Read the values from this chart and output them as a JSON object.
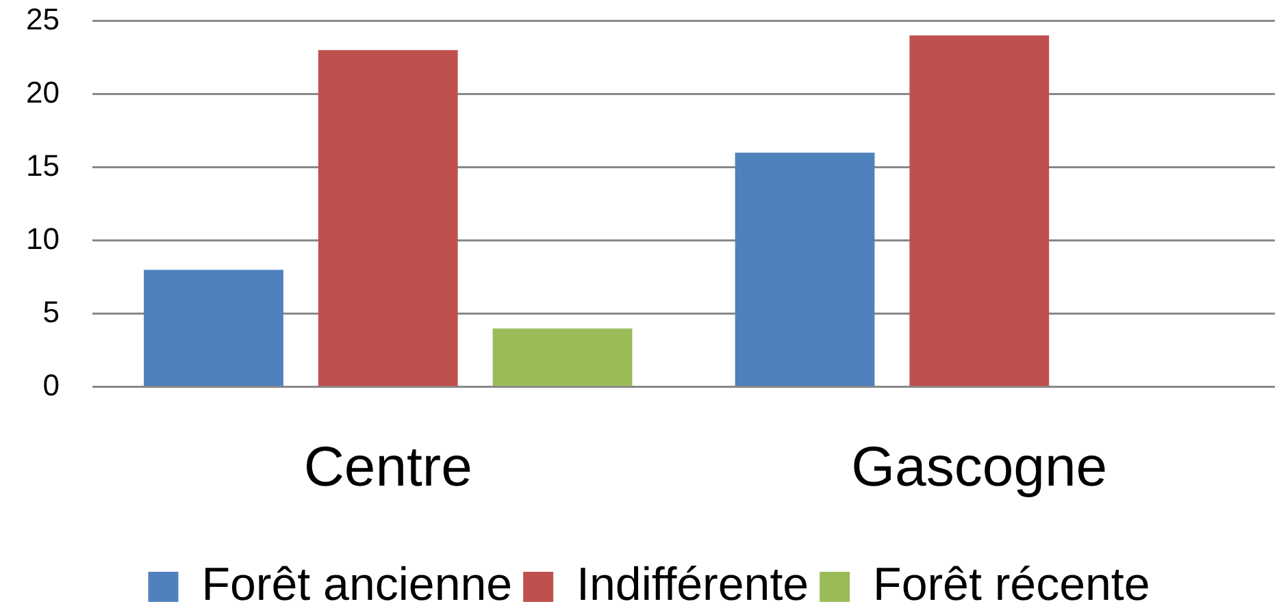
{
  "chart_data": {
    "type": "bar",
    "categories": [
      "Centre",
      "Gascogne"
    ],
    "series": [
      {
        "name": "Forêt ancienne",
        "color": "#4f81bd",
        "values": [
          8,
          16
        ]
      },
      {
        "name": "Indifférente",
        "color": "#c0504d",
        "values": [
          23,
          24
        ]
      },
      {
        "name": "Forêt récente",
        "color": "#9bbb59",
        "values": [
          4,
          0
        ]
      }
    ],
    "ylim": [
      0,
      25
    ],
    "yticks": [
      0,
      5,
      10,
      15,
      20,
      25
    ],
    "grid": "y",
    "legend": "bottom"
  }
}
